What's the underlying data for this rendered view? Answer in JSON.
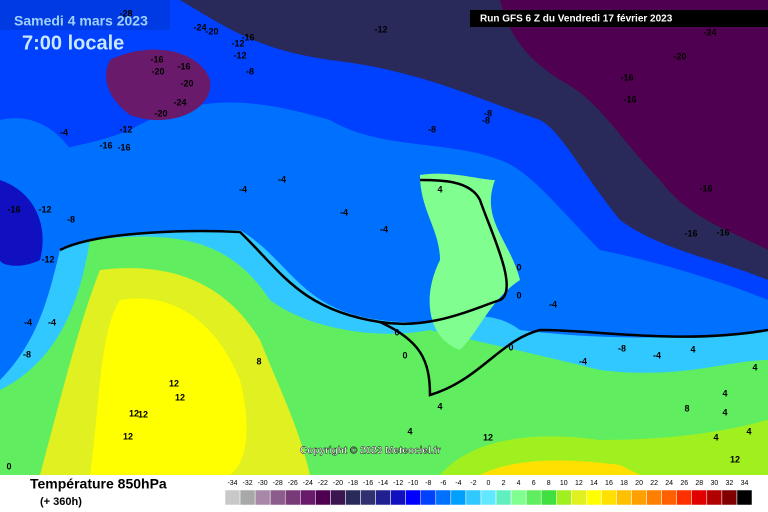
{
  "header": {
    "date": "Samedi 4 mars 2023",
    "time": "7:00 locale",
    "run": "Run GFS 6 Z du Vendredi 17 février 2023"
  },
  "map": {
    "labels": [
      -24,
      -28,
      -20,
      -16,
      -12,
      -16,
      -20,
      -16,
      -20,
      -12,
      -8,
      -24,
      -20,
      -12,
      -16,
      -16,
      -4,
      -16,
      -12,
      -8,
      -12,
      -4,
      -4,
      -8,
      -8,
      -12,
      -20,
      -24,
      -16,
      -16,
      -8,
      -4,
      -4,
      -4,
      -4,
      -16,
      -16,
      -16,
      4,
      0,
      0,
      -4,
      0,
      0,
      0,
      -4,
      -8,
      -4,
      4,
      4,
      8,
      12,
      12,
      12,
      12,
      12,
      4,
      8,
      12,
      12,
      4,
      4,
      4,
      4,
      4,
      0,
      -8
    ],
    "copyright": "Copyright © 2023 Meteociel.fr"
  },
  "footer": {
    "title": "Température 850hPa",
    "lead": "(+ 360h)"
  },
  "legend": {
    "values": [
      -34,
      -32,
      -30,
      -28,
      -26,
      -24,
      -22,
      -20,
      -18,
      -16,
      -14,
      -12,
      -10,
      -8,
      -6,
      -4,
      -2,
      0,
      2,
      4,
      6,
      8,
      10,
      12,
      14,
      16,
      18,
      20,
      22,
      24,
      26,
      28,
      30,
      32,
      34
    ],
    "colors": [
      "#c8c8c8",
      "#a8a8a8",
      "#a888a8",
      "#8c5c8c",
      "#7a3a7a",
      "#6a1a6a",
      "#500050",
      "#3c1450",
      "#2a2a5a",
      "#303070",
      "#202090",
      "#1010c0",
      "#0000ff",
      "#0040ff",
      "#0070ff",
      "#00a0ff",
      "#30c8ff",
      "#60e8ff",
      "#60f0c0",
      "#80ff90",
      "#60ee60",
      "#40e040",
      "#a0f020",
      "#e0f020",
      "#ffff00",
      "#ffe000",
      "#ffc000",
      "#ffa000",
      "#ff8000",
      "#ff6000",
      "#ff3000",
      "#e00000",
      "#b00000",
      "#800000",
      "#000000"
    ]
  }
}
